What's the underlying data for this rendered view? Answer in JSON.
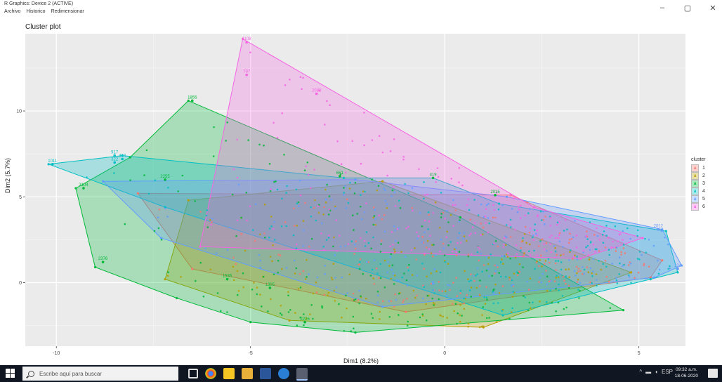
{
  "window": {
    "title": "R Graphics: Device 2 (ACTIVE)",
    "menu": [
      "Archivo",
      "Historico",
      "Redimensionar"
    ],
    "controls": [
      "–",
      "▢",
      "✕"
    ]
  },
  "chart_data": {
    "type": "scatter",
    "title": "Cluster plot",
    "xlabel": "Dim1 (8.2%)",
    "ylabel": "Dim2 (5.7%)",
    "xlim": [
      -10.8,
      6.2
    ],
    "ylim": [
      -3.7,
      14.5
    ],
    "x_ticks": [
      -10,
      -5,
      0,
      5
    ],
    "y_ticks": [
      0,
      5,
      10
    ],
    "x_tick_labels": [
      "-10",
      "-5",
      "0",
      "5"
    ],
    "y_tick_labels": [
      "0",
      "5",
      "10"
    ],
    "grid": true,
    "legend_title": "cluster",
    "legend_position": "right",
    "series": [
      {
        "name": "1",
        "color": "#F8766D",
        "hull": [
          [
            -7.9,
            5.2
          ],
          [
            1.7,
            5.1
          ],
          [
            5.6,
            1.3
          ],
          [
            5.3,
            0.3
          ],
          [
            -1.0,
            -1.7
          ],
          [
            -6.5,
            0.8
          ]
        ]
      },
      {
        "name": "2",
        "color": "#B79F00",
        "hull": [
          [
            -6.6,
            4.8
          ],
          [
            -1.6,
            5.9
          ],
          [
            4.8,
            0.6
          ],
          [
            1.0,
            -2.6
          ],
          [
            -4.0,
            -2.2
          ],
          [
            -7.2,
            0.2
          ]
        ]
      },
      {
        "name": "3",
        "color": "#00BA38",
        "hull": [
          [
            -6.6,
            10.6
          ],
          [
            0.4,
            3.8
          ],
          [
            4.6,
            -1.6
          ],
          [
            -2.3,
            -2.9
          ],
          [
            -5.0,
            -2.3
          ],
          [
            -6.9,
            -0.9
          ],
          [
            -9.0,
            0.9
          ],
          [
            -9.5,
            5.5
          ],
          [
            -8.1,
            7.3
          ]
        ]
      },
      {
        "name": "4",
        "color": "#00BFC4",
        "hull": [
          [
            -10.2,
            6.9
          ],
          [
            -8.3,
            7.4
          ],
          [
            -2.6,
            6.1
          ],
          [
            -0.3,
            6.1
          ],
          [
            1.4,
            4.6
          ],
          [
            5.7,
            3.0
          ],
          [
            6.0,
            0.6
          ],
          [
            5.3,
            0.2
          ],
          [
            1.5,
            -1.9
          ],
          [
            -7.2,
            4.4
          ]
        ]
      },
      {
        "name": "5",
        "color": "#619CFF",
        "hull": [
          [
            -8.8,
            5.9
          ],
          [
            -2.3,
            6.0
          ],
          [
            1.6,
            5.0
          ],
          [
            5.6,
            3.1
          ],
          [
            6.1,
            1.0
          ],
          [
            5.4,
            0.3
          ],
          [
            -1.6,
            -1.4
          ],
          [
            -7.3,
            2.6
          ]
        ]
      },
      {
        "name": "6",
        "color": "#F564E3",
        "hull": [
          [
            -5.2,
            14.2
          ],
          [
            2.3,
            4.4
          ],
          [
            5.1,
            2.6
          ],
          [
            3.5,
            1.4
          ],
          [
            -6.3,
            2.1
          ]
        ]
      }
    ],
    "labelled_points": [
      {
        "label": "1108",
        "x": -5.1,
        "y": 14.0,
        "cluster": "6"
      },
      {
        "label": "797",
        "x": -5.1,
        "y": 12.1,
        "cluster": "6"
      },
      {
        "label": "2083",
        "x": -3.3,
        "y": 11.0,
        "cluster": "6"
      },
      {
        "label": "1855",
        "x": -6.5,
        "y": 10.6,
        "cluster": "3"
      },
      {
        "label": "1011",
        "x": -10.1,
        "y": 6.9,
        "cluster": "4"
      },
      {
        "label": "917",
        "x": -8.5,
        "y": 7.4,
        "cluster": "4"
      },
      {
        "label": "374",
        "x": -8.3,
        "y": 7.2,
        "cluster": "4"
      },
      {
        "label": "322",
        "x": -8.5,
        "y": 7.0,
        "cluster": "4"
      },
      {
        "label": "2255",
        "x": -7.2,
        "y": 6.0,
        "cluster": "3"
      },
      {
        "label": "651",
        "x": -2.7,
        "y": 6.2,
        "cluster": "3"
      },
      {
        "label": "419",
        "x": -0.3,
        "y": 6.1,
        "cluster": "3"
      },
      {
        "label": "2015",
        "x": 1.3,
        "y": 5.1,
        "cluster": "3"
      },
      {
        "label": "2104",
        "x": -9.3,
        "y": 5.5,
        "cluster": "3"
      },
      {
        "label": "2376",
        "x": -8.8,
        "y": 1.2,
        "cluster": "3"
      },
      {
        "label": "1536",
        "x": -5.6,
        "y": 0.2,
        "cluster": "3"
      },
      {
        "label": "1305",
        "x": -4.5,
        "y": -0.3,
        "cluster": "3"
      },
      {
        "label": "2226",
        "x": -3.6,
        "y": -2.3,
        "cluster": "3"
      },
      {
        "label": "2012",
        "x": 5.5,
        "y": 3.1,
        "cluster": "5"
      },
      {
        "label": "124",
        "x": 6.0,
        "y": 0.8,
        "cluster": "5"
      }
    ]
  },
  "taskbar": {
    "search_placeholder": "Escribe aquí para buscar",
    "tray_text": "ESP",
    "clock_time": "09:32 a.m.",
    "clock_date": "18-06-2020"
  }
}
